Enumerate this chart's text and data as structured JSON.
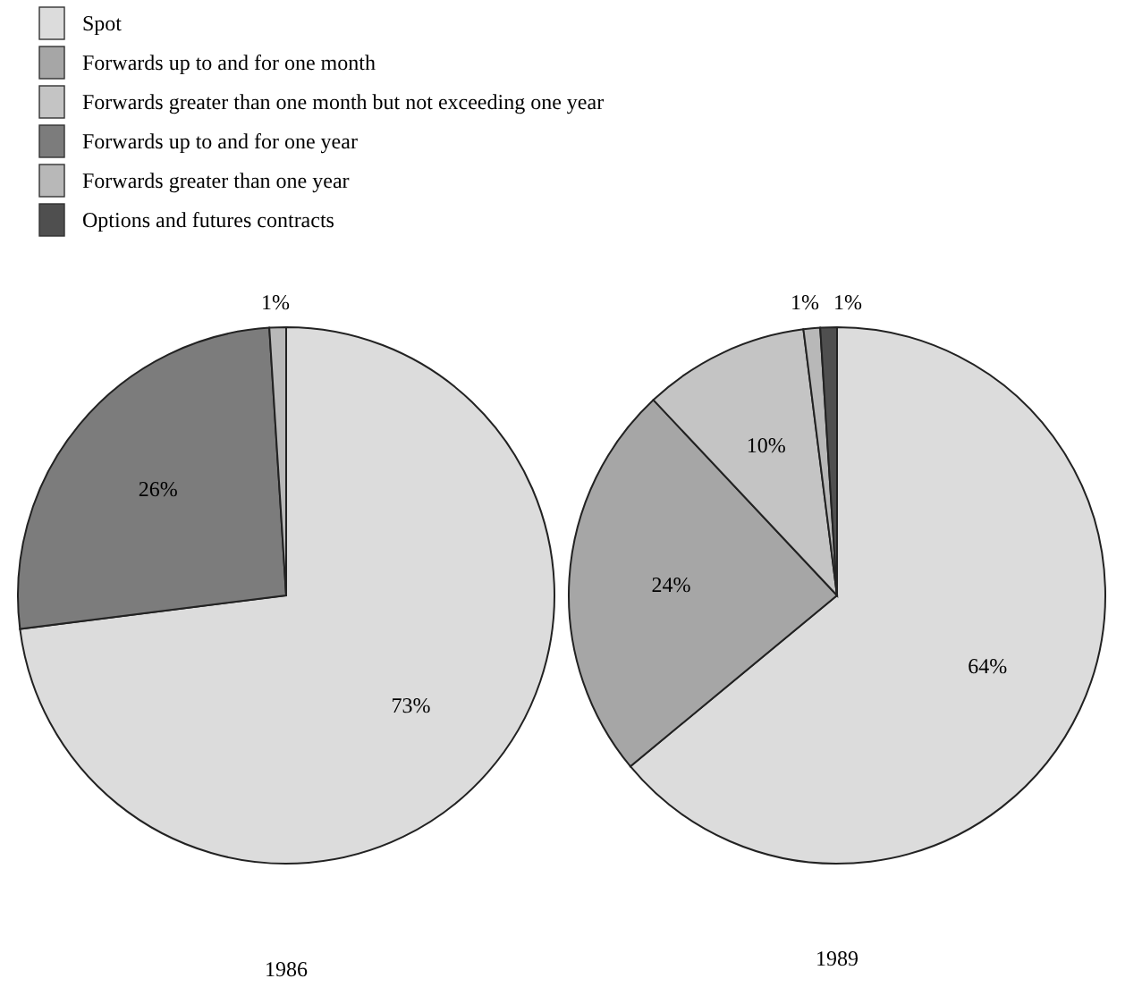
{
  "chart_data": [
    {
      "type": "pie",
      "title": "1986",
      "legend": "top",
      "categories": [
        "Spot",
        "Forwards up to and for one month",
        "Forwards greater than one month but not exceeding one year",
        "Forwards up to and for one year",
        "Forwards greater than one year",
        "Options and futures contracts"
      ],
      "values": [
        73,
        null,
        null,
        26,
        1,
        null
      ],
      "value_labels": [
        "73%",
        null,
        null,
        "26%",
        "1%",
        null
      ],
      "colors": [
        "#dcdcdc",
        "#a6a6a6",
        "#c4c4c4",
        "#7c7c7c",
        "#b8b8b8",
        "#4f4f4f"
      ]
    },
    {
      "type": "pie",
      "title": "1989",
      "categories": [
        null,
        null,
        null,
        null,
        null
      ],
      "values": [
        64,
        24,
        10,
        1,
        1
      ],
      "value_labels": [
        "64%",
        "24%",
        "10%",
        "1%",
        "1%"
      ],
      "colors": [
        "#dcdcdc",
        "#a6a6a6",
        "#c4c4c4",
        "#b8b8b8",
        "#4f4f4f"
      ]
    }
  ]
}
